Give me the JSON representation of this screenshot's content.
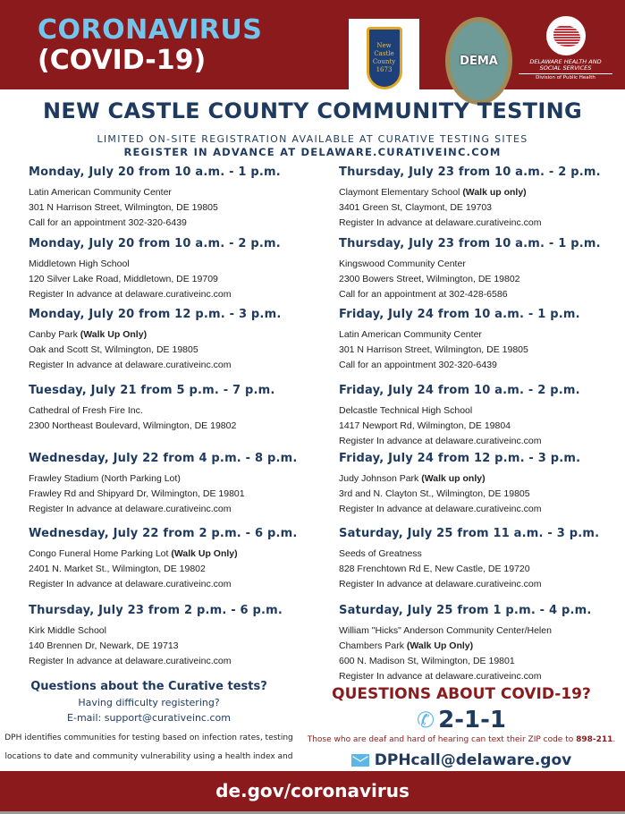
{
  "header": {
    "line1": "CORONAVIRUS",
    "line2": "(COVID-19)",
    "logos": {
      "county": "New Castle County 1673 Delaware",
      "dema": "DEMA",
      "dhss": "DELAWARE HEALTH AND SOCIAL SERVICES",
      "dhss_division": "Division of Public Health"
    },
    "colors": {
      "banner": "#8b1a1c",
      "accent": "#72c6ee",
      "navy": "#1f3a5f"
    }
  },
  "title": "NEW CASTLE COUNTY COMMUNITY TESTING",
  "subtitle1": "LIMITED ON-SITE REGISTRATION AVAILABLE AT CURATIVE TESTING SITES",
  "subtitle2": "REGISTER IN ADVANCE AT DELAWARE.CURATIVEINC.COM",
  "left": [
    {
      "heading": "Monday, July 20 from 10 a.m. - 1 p.m.",
      "lines": [
        {
          "text": "Latin American Community Center"
        },
        {
          "text": "301 N Harrison Street, Wilmington, DE 19805"
        },
        {
          "text": "Call for an appointment 302-320-6439"
        }
      ]
    },
    {
      "heading": "Monday, July 20 from 10 a.m. - 2 p.m.",
      "lines": [
        {
          "text": "Middletown High School"
        },
        {
          "text": "120 Silver Lake Road, Middletown, DE 19709"
        },
        {
          "text": "Register In advance at delaware.curativeinc.com"
        }
      ]
    },
    {
      "heading": "Monday, July 20 from 12 p.m. - 3 p.m.",
      "lines": [
        {
          "text": "Canby Park ",
          "bold": "(Walk Up Only)"
        },
        {
          "text": "Oak and Scott St, Wilmington, DE 19805"
        },
        {
          "text": "Register In advance at delaware.curativeinc.com"
        }
      ]
    },
    {
      "heading": "Tuesday, July 21 from 5 p.m. - 7 p.m.",
      "lines": [
        {
          "text": "Cathedral of Fresh Fire Inc."
        },
        {
          "text": "2300 Northeast Boulevard, Wilmington, DE 19802"
        }
      ]
    },
    {
      "heading": "Wednesday, July 22 from 4 p.m. - 8 p.m.",
      "lines": [
        {
          "text": "Frawley Stadium (North Parking Lot)"
        },
        {
          "text": "Frawley Rd and Shipyard Dr, Wilmington, DE 19801"
        },
        {
          "text": "Register In advance at delaware.curativeinc.com"
        }
      ]
    },
    {
      "heading": "Wednesday, July 22 from 2 p.m. - 6 p.m.",
      "lines": [
        {
          "text": "Congo Funeral Home Parking Lot ",
          "bold": "(Walk Up Only)"
        },
        {
          "text": "2401 N. Market St., Wilmington, DE 19802"
        },
        {
          "text": "Register In advance at delaware.curativeinc.com"
        }
      ]
    },
    {
      "heading": "Thursday, July 23 from 2 p.m. - 6 p.m.",
      "lines": [
        {
          "text": "Kirk Middle School"
        },
        {
          "text": "140 Brennen Dr, Newark, DE 19713"
        },
        {
          "text": "Register In advance at delaware.curativeinc.com"
        }
      ]
    }
  ],
  "right": [
    {
      "heading": "Thursday, July 23 from 10 a.m. - 2 p.m.",
      "lines": [
        {
          "text": "Claymont Elementary School ",
          "bold": "(Walk up only)"
        },
        {
          "text": "3401 Green St, Claymont, DE 19703"
        },
        {
          "text": "Register In advance at delaware.curativeinc.com"
        }
      ]
    },
    {
      "heading": "Thursday, July 23 from 10 a.m. - 1 p.m.",
      "lines": [
        {
          "text": "Kingswood Community Center"
        },
        {
          "text": "2300 Bowers Street, Wilmington, DE 19802"
        },
        {
          "text": "Call for an appointment at 302-428-6586"
        }
      ]
    },
    {
      "heading": "Friday, July 24 from 10 a.m. - 1 p.m.",
      "lines": [
        {
          "text": "Latin American Community Center"
        },
        {
          "text": "301 N Harrison Street, Wilmington, DE 19805"
        },
        {
          "text": "Call for an appointment 302-320-6439"
        }
      ]
    },
    {
      "heading": "Friday, July 24 from 10 a.m. - 2 p.m.",
      "lines": [
        {
          "text": "Delcastle Technical High School"
        },
        {
          "text": "1417 Newport Rd, Wilmington, DE 19804"
        },
        {
          "text": "Register In advance at delaware.curativeinc.com"
        }
      ]
    },
    {
      "heading": "Friday, July 24 from 12 p.m. - 3 p.m.",
      "lines": [
        {
          "text": "Judy Johnson Park ",
          "bold": "(Walk up only)"
        },
        {
          "text": "3rd and N. Clayton St., Wilmington, DE 19805"
        },
        {
          "text": "Register In advance at delaware.curativeinc.com"
        }
      ]
    },
    {
      "heading": "Saturday, July 25 from 11 a.m. - 3 p.m.",
      "lines": [
        {
          "text": "Seeds of Greatness"
        },
        {
          "text": "828 Frenchtown Rd E, New Castle, DE 19720"
        },
        {
          "text": "Register In advance at delaware.curativeinc.com"
        }
      ]
    },
    {
      "heading": "Saturday, July 25 from 1 p.m. - 4 p.m.",
      "lines": [
        {
          "text": "William \"Hicks\" Anderson Community Center/Helen"
        },
        {
          "text": "Chambers Park ",
          "bold": "(Walk Up Only)"
        },
        {
          "text": "600 N. Madison St, Wilmington, DE 19801"
        },
        {
          "text": "Register In advance at delaware.curativeinc.com"
        }
      ]
    }
  ],
  "curative": {
    "heading": "Questions about the Curative tests?",
    "line2": "Having difficulty registering?",
    "line3": "E-mail: support@curativeinc.com",
    "note": "DPH identifies communities for testing based on infection rates, testing locations to date and community vulnerability using a health index and chronic disease prevalence."
  },
  "covid": {
    "heading": "QUESTIONS ABOUT COVID-19?",
    "phone": "2-1-1",
    "phone_icon": "phone-icon",
    "deaf_text": "Those who are deaf and hard of hearing can text their ZIP code to ",
    "deaf_number": "898-211",
    "email_icon": "envelope-icon",
    "email": "DPHcall@delaware.gov"
  },
  "footer": {
    "url": "de.gov/coronavirus"
  }
}
